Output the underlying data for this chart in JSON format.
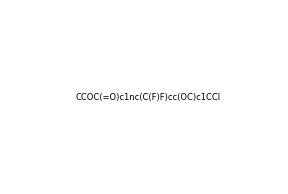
{
  "smiles": "CCOC(=O)c1nc(C(F)F)cc(OC)c1CCl",
  "title": "",
  "figsize": [
    2.88,
    1.94
  ],
  "dpi": 100,
  "background": "#ffffff"
}
